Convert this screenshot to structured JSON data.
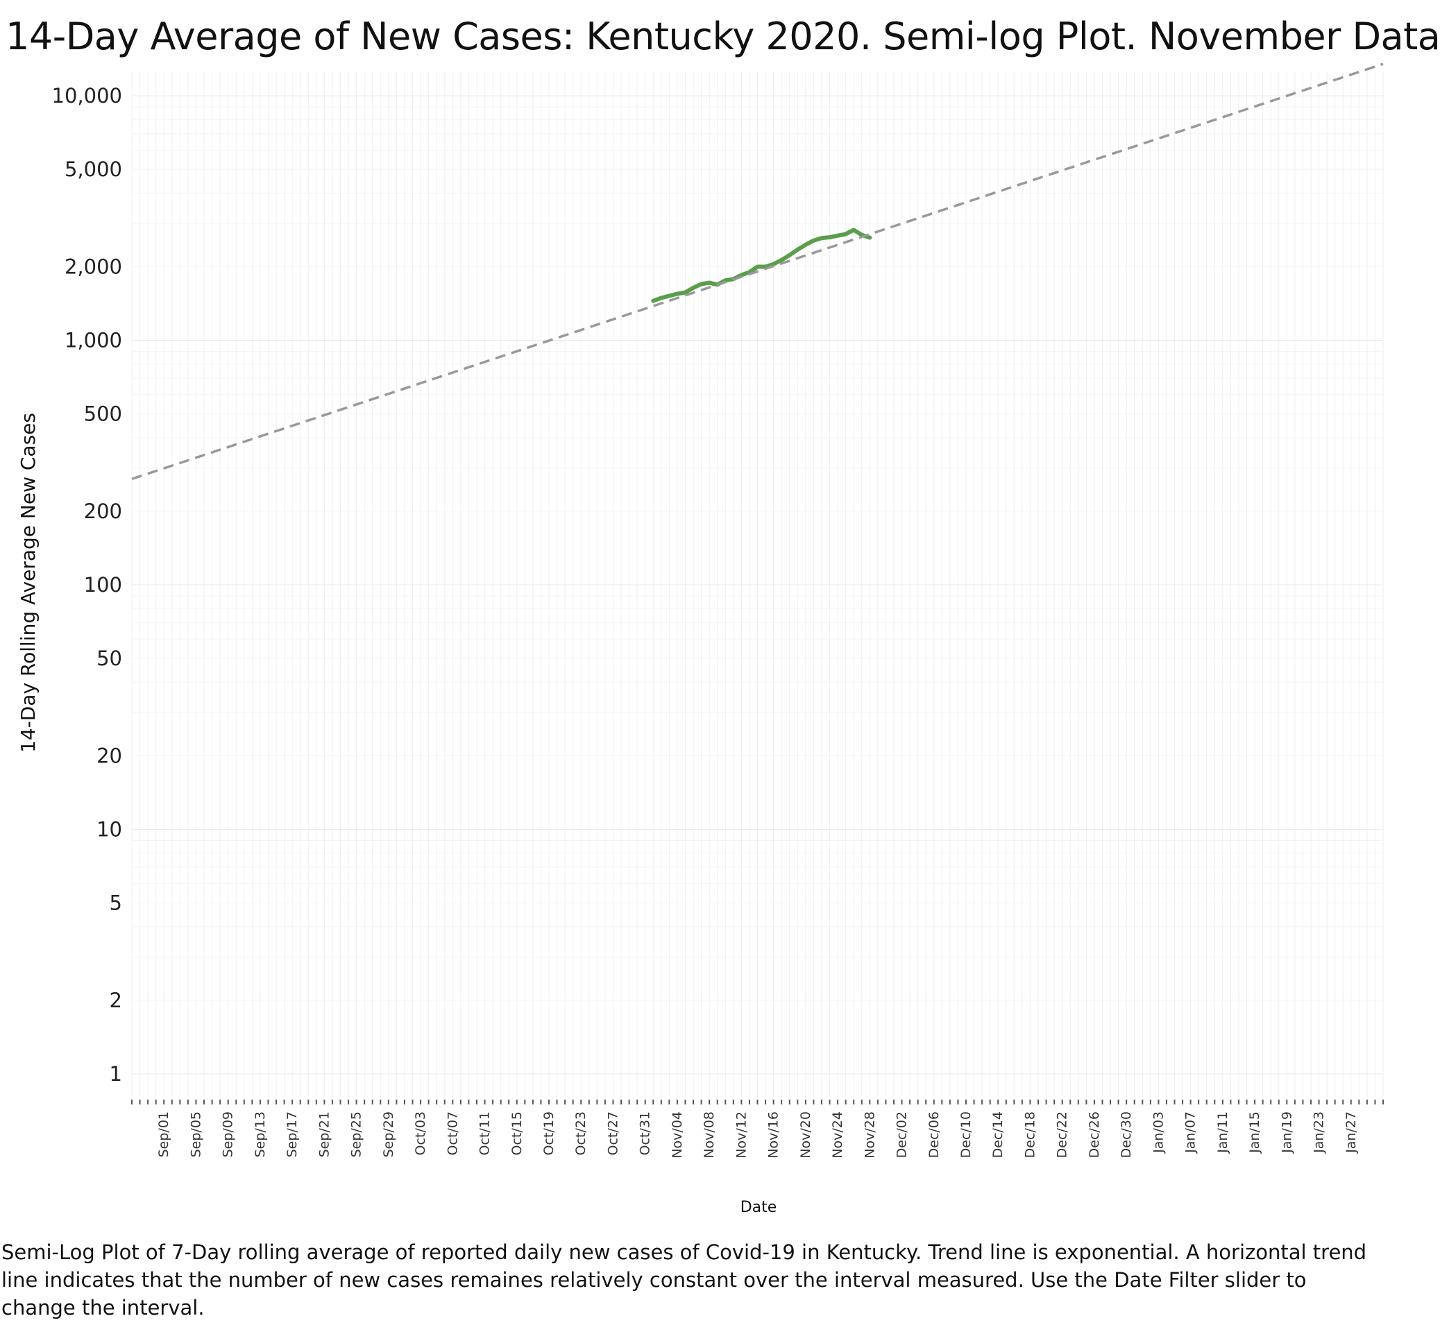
{
  "chart_data": {
    "type": "line",
    "title": "14-Day Average of New Cases:  Kentucky 2020.  Semi-log Plot. November Data",
    "xlabel": "Date",
    "ylabel": "14-Day Rolling Average New Cases",
    "caption": "Semi-Log Plot of 7-Day rolling average of reported daily new cases of Covid-19 in Kentucky. Trend line is exponential. A horizontal trend line indicates that the number of new cases remaines relatively constant over the interval measured.  Use the Date Filter slider to change the interval.",
    "y_scale": "log",
    "ylim": [
      0.8,
      12500
    ],
    "xlim": [
      "2020-08-28",
      "2021-01-31"
    ],
    "y_ticks": [
      1,
      2,
      5,
      10,
      20,
      50,
      100,
      200,
      500,
      1000,
      2000,
      5000,
      10000
    ],
    "y_tick_labels": [
      "1",
      "2",
      "5",
      "10",
      "20",
      "50",
      "100",
      "200",
      "500",
      "1,000",
      "2,000",
      "5,000",
      "10,000"
    ],
    "x_ticks": [
      "2020-09-01",
      "2020-09-05",
      "2020-09-09",
      "2020-09-13",
      "2020-09-17",
      "2020-09-21",
      "2020-09-25",
      "2020-09-29",
      "2020-10-03",
      "2020-10-07",
      "2020-10-11",
      "2020-10-15",
      "2020-10-19",
      "2020-10-23",
      "2020-10-27",
      "2020-10-31",
      "2020-11-04",
      "2020-11-08",
      "2020-11-12",
      "2020-11-16",
      "2020-11-20",
      "2020-11-24",
      "2020-11-28",
      "2020-12-02",
      "2020-12-06",
      "2020-12-10",
      "2020-12-14",
      "2020-12-18",
      "2020-12-22",
      "2020-12-26",
      "2020-12-30",
      "2021-01-03",
      "2021-01-07",
      "2021-01-11",
      "2021-01-15",
      "2021-01-19",
      "2021-01-23",
      "2021-01-27"
    ],
    "x_tick_labels": [
      "Sep/01",
      "Sep/05",
      "Sep/09",
      "Sep/13",
      "Sep/17",
      "Sep/21",
      "Sep/25",
      "Sep/29",
      "Oct/03",
      "Oct/07",
      "Oct/11",
      "Oct/15",
      "Oct/19",
      "Oct/23",
      "Oct/27",
      "Oct/31",
      "Nov/04",
      "Nov/08",
      "Nov/12",
      "Nov/16",
      "Nov/20",
      "Nov/24",
      "Nov/28",
      "Dec/02",
      "Dec/06",
      "Dec/10",
      "Dec/14",
      "Dec/18",
      "Dec/22",
      "Dec/26",
      "Dec/30",
      "Jan/03",
      "Jan/07",
      "Jan/11",
      "Jan/15",
      "Jan/19",
      "Jan/23",
      "Jan/27"
    ],
    "grid": true,
    "series": [
      {
        "color": "#5a9e4b",
        "line": "solid",
        "x": [
          "2020-11-01",
          "2020-11-02",
          "2020-11-03",
          "2020-11-04",
          "2020-11-05",
          "2020-11-06",
          "2020-11-07",
          "2020-11-08",
          "2020-11-09",
          "2020-11-10",
          "2020-11-11",
          "2020-11-12",
          "2020-11-13",
          "2020-11-14",
          "2020-11-15",
          "2020-11-16",
          "2020-11-17",
          "2020-11-18",
          "2020-11-19",
          "2020-11-20",
          "2020-11-21",
          "2020-11-22",
          "2020-11-23",
          "2020-11-24",
          "2020-11-25",
          "2020-11-26",
          "2020-11-27",
          "2020-11-28"
        ],
        "y": [
          1450,
          1490,
          1520,
          1550,
          1570,
          1640,
          1700,
          1720,
          1690,
          1760,
          1780,
          1850,
          1900,
          2000,
          2000,
          2050,
          2130,
          2230,
          2350,
          2460,
          2560,
          2620,
          2640,
          2680,
          2720,
          2830,
          2700,
          2630
        ]
      },
      {
        "color": "#999999",
        "line": "dashed",
        "trend": "exponential",
        "x": [
          "2020-08-28",
          "2021-01-31"
        ],
        "y": [
          271,
          13500
        ]
      }
    ]
  }
}
